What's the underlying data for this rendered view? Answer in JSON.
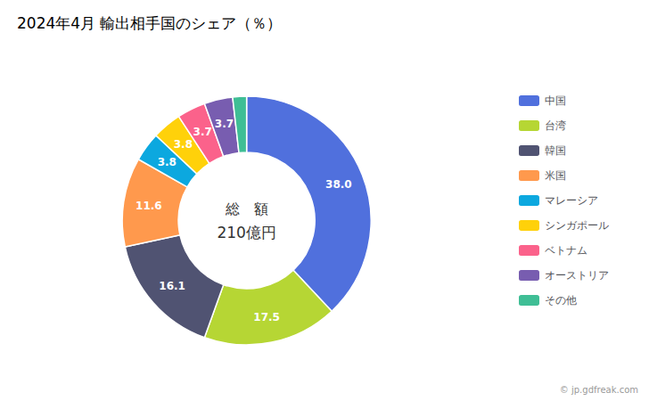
{
  "chart_data": {
    "type": "donut",
    "title": "2024年4月 輸出相手国のシェア（％）",
    "center_label": [
      "総　額",
      "210億円"
    ],
    "annotations": [
      "© jp.gdfreak.com"
    ],
    "categories": [
      "中国",
      "台湾",
      "韓国",
      "米国",
      "マレーシア",
      "シンガポール",
      "ベトナム",
      "オーストリア",
      "その他"
    ],
    "values": [
      38.0,
      17.5,
      16.1,
      11.6,
      3.8,
      3.8,
      3.7,
      3.7,
      1.8
    ],
    "value_labels": [
      "38.0",
      "17.5",
      "16.1",
      "11.6",
      "3.8",
      "3.8",
      "3.7",
      "3.7",
      null
    ],
    "data_labels": true,
    "legend": "right"
  }
}
